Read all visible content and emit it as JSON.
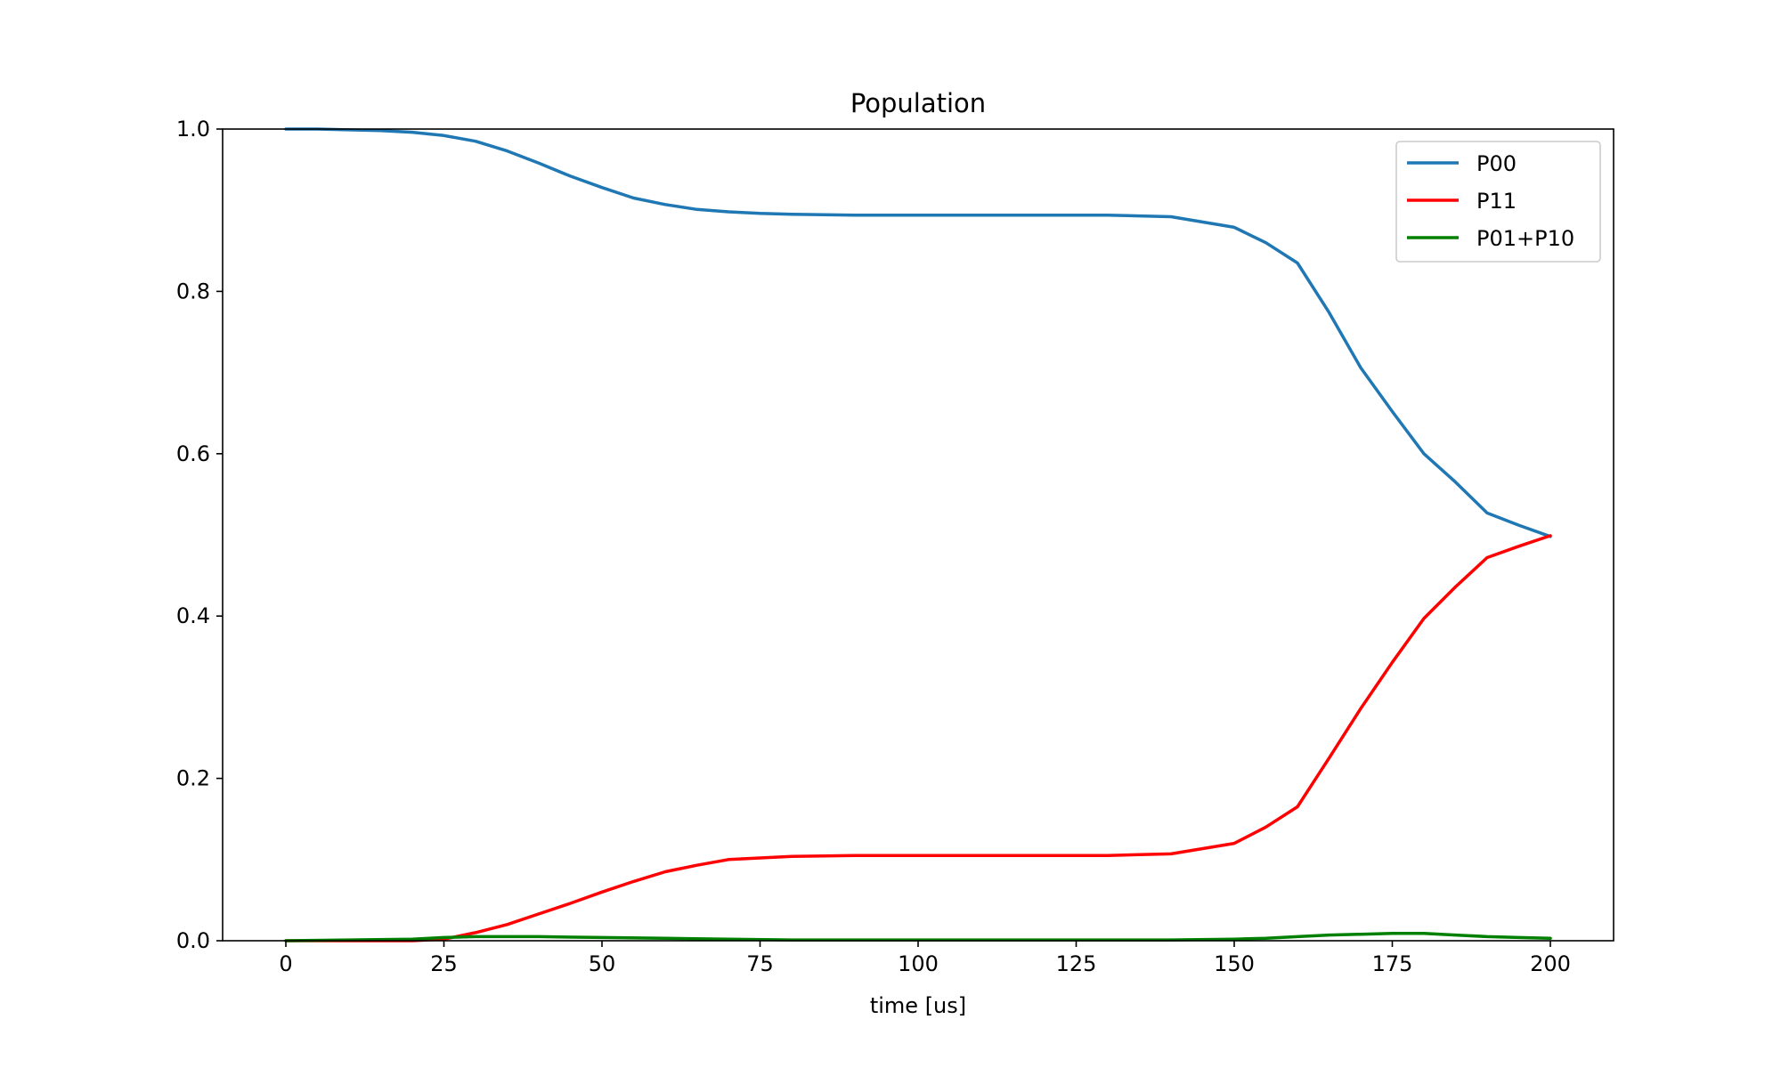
{
  "chart_data": {
    "type": "line",
    "title": "Population",
    "xlabel": "time [us]",
    "ylabel": "",
    "xlim": [
      -10,
      210
    ],
    "ylim": [
      0.0,
      1.0
    ],
    "x_ticks": [
      0,
      25,
      50,
      75,
      100,
      125,
      150,
      175,
      200
    ],
    "x_tick_labels": [
      "0",
      "25",
      "50",
      "75",
      "100",
      "125",
      "150",
      "175",
      "200"
    ],
    "y_ticks": [
      0.0,
      0.2,
      0.4,
      0.6,
      0.8,
      1.0
    ],
    "y_tick_labels": [
      "0.0",
      "0.2",
      "0.4",
      "0.6",
      "0.8",
      "1.0"
    ],
    "grid": false,
    "legend_position": "top-right",
    "series": [
      {
        "name": "P00",
        "color": "#1f77b4",
        "x": [
          0,
          5,
          10,
          15,
          20,
          25,
          30,
          35,
          40,
          45,
          50,
          55,
          60,
          65,
          70,
          75,
          80,
          90,
          100,
          110,
          120,
          130,
          140,
          150,
          155,
          160,
          165,
          170,
          175,
          180,
          185,
          190,
          195,
          200
        ],
        "y": [
          1.0,
          1.0,
          0.999,
          0.998,
          0.996,
          0.992,
          0.985,
          0.973,
          0.958,
          0.942,
          0.928,
          0.915,
          0.907,
          0.901,
          0.898,
          0.896,
          0.895,
          0.894,
          0.894,
          0.894,
          0.894,
          0.894,
          0.892,
          0.879,
          0.86,
          0.835,
          0.774,
          0.706,
          0.652,
          0.6,
          0.565,
          0.527,
          0.512,
          0.498
        ]
      },
      {
        "name": "P11",
        "color": "#ff0000",
        "x": [
          0,
          5,
          10,
          15,
          20,
          25,
          30,
          35,
          40,
          45,
          50,
          55,
          60,
          65,
          70,
          75,
          80,
          90,
          100,
          110,
          120,
          130,
          140,
          150,
          155,
          160,
          165,
          170,
          175,
          180,
          185,
          190,
          195,
          200
        ],
        "y": [
          0.0,
          0.0,
          0.0,
          0.0,
          0.0,
          0.002,
          0.01,
          0.02,
          0.033,
          0.046,
          0.06,
          0.073,
          0.085,
          0.093,
          0.1,
          0.102,
          0.104,
          0.105,
          0.105,
          0.105,
          0.105,
          0.105,
          0.107,
          0.12,
          0.14,
          0.165,
          0.225,
          0.286,
          0.343,
          0.397,
          0.436,
          0.472,
          0.486,
          0.499
        ]
      },
      {
        "name": "P01+P10",
        "color": "#008000",
        "x": [
          0,
          10,
          20,
          25,
          30,
          40,
          50,
          60,
          70,
          80,
          90,
          100,
          110,
          120,
          130,
          140,
          150,
          155,
          160,
          165,
          170,
          175,
          180,
          185,
          190,
          195,
          200
        ],
        "y": [
          0.0,
          0.001,
          0.002,
          0.004,
          0.005,
          0.005,
          0.004,
          0.003,
          0.002,
          0.001,
          0.001,
          0.001,
          0.001,
          0.001,
          0.001,
          0.001,
          0.002,
          0.003,
          0.005,
          0.007,
          0.008,
          0.009,
          0.009,
          0.007,
          0.005,
          0.004,
          0.003
        ]
      }
    ]
  }
}
